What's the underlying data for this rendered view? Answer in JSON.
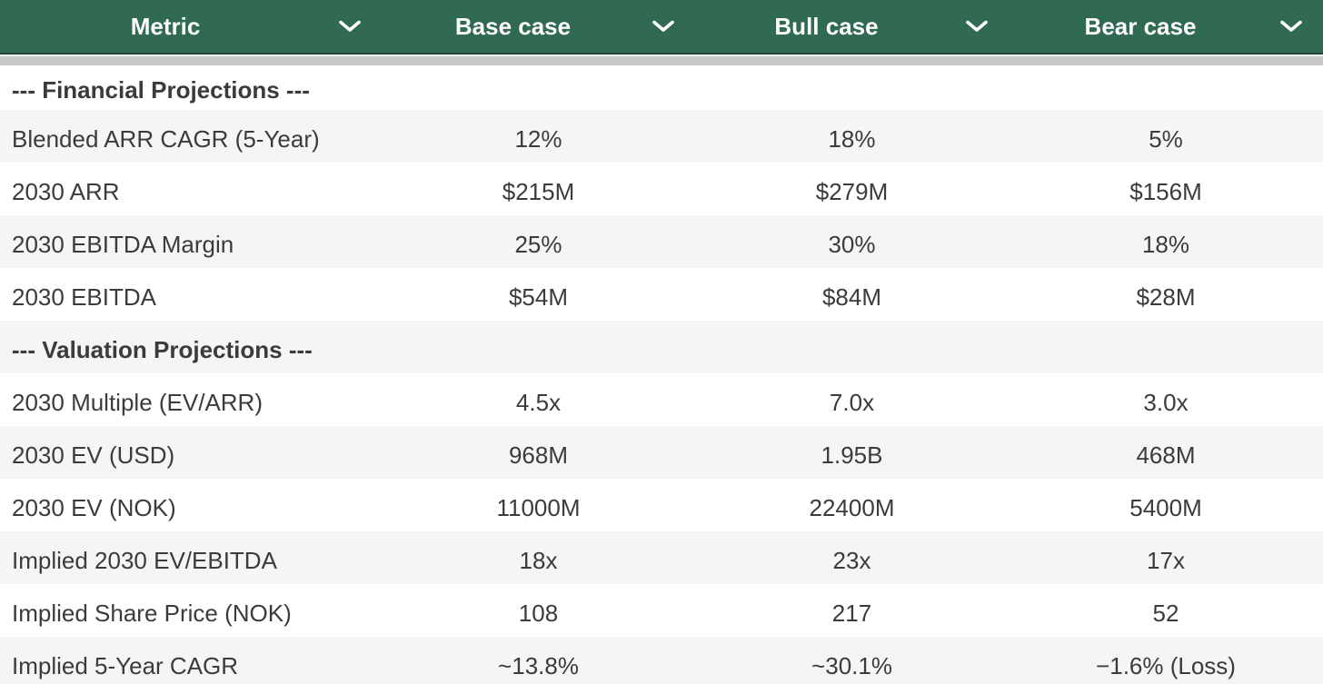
{
  "header": {
    "columns": [
      {
        "label": "Metric",
        "icon": "chevron-down-icon"
      },
      {
        "label": "Base case",
        "icon": "chevron-down-icon"
      },
      {
        "label": "Bull case",
        "icon": "chevron-down-icon"
      },
      {
        "label": "Bear case",
        "icon": "chevron-down-icon"
      }
    ]
  },
  "rows": [
    {
      "section": true,
      "metric": "--- Financial Projections ---"
    },
    {
      "section": false,
      "metric": "Blended ARR CAGR (5-Year)",
      "base": "12%",
      "bull": "18%",
      "bear": "5%"
    },
    {
      "section": false,
      "metric": "2030 ARR",
      "base": "$215M",
      "bull": "$279M",
      "bear": "$156M"
    },
    {
      "section": false,
      "metric": "2030 EBITDA Margin",
      "base": "25%",
      "bull": "30%",
      "bear": "18%"
    },
    {
      "section": false,
      "metric": "2030 EBITDA",
      "base": "$54M",
      "bull": "$84M",
      "bear": "$28M"
    },
    {
      "section": true,
      "metric": "--- Valuation Projections ---"
    },
    {
      "section": false,
      "metric": "2030 Multiple (EV/ARR)",
      "base": "4.5x",
      "bull": "7.0x",
      "bear": "3.0x"
    },
    {
      "section": false,
      "metric": "2030 EV (USD)",
      "base": "968M",
      "bull": "1.95B",
      "bear": "468M"
    },
    {
      "section": false,
      "metric": "2030 EV (NOK)",
      "base": "11000M",
      "bull": "22400M",
      "bear": "5400M"
    },
    {
      "section": false,
      "metric": "Implied 2030 EV/EBITDA",
      "base": "18x",
      "bull": "23x",
      "bear": "17x"
    },
    {
      "section": false,
      "metric": "Implied Share Price (NOK)",
      "base": "108",
      "bull": "217",
      "bear": "52"
    },
    {
      "section": false,
      "metric": "Implied 5-Year CAGR",
      "base": "~13.8%",
      "bull": "~30.1%",
      "bear": "−1.6% (Loss)"
    }
  ],
  "colors": {
    "header_green": "#306a52",
    "header_border": "#234537",
    "scrollbar_gray": "#c8c8c8",
    "row_alt_gray": "#f4f5f7",
    "text_dark": "#3b3b3b",
    "header_text": "#ffffff"
  }
}
